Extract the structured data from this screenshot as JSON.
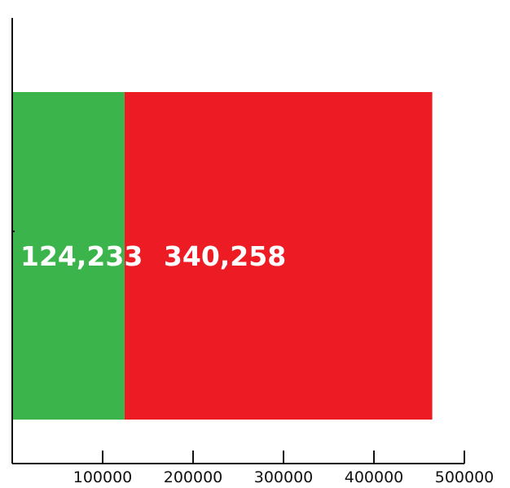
{
  "chart_data": {
    "type": "bar",
    "orientation": "horizontal",
    "stacked": true,
    "title": "",
    "xlabel": "",
    "ylabel": "",
    "xlim": [
      0,
      500000
    ],
    "x_ticks": [
      100000,
      200000,
      300000,
      400000,
      500000
    ],
    "x_tick_labels": [
      "100000",
      "200000",
      "300000",
      "400000",
      "500000"
    ],
    "grid": false,
    "legend": "none",
    "categories": [
      ""
    ],
    "series": [
      {
        "values": [
          124233
        ],
        "label": "124,233",
        "color": "#3bb44b"
      },
      {
        "values": [
          340258
        ],
        "label": "340,258",
        "color": "#ed1c24"
      }
    ]
  }
}
